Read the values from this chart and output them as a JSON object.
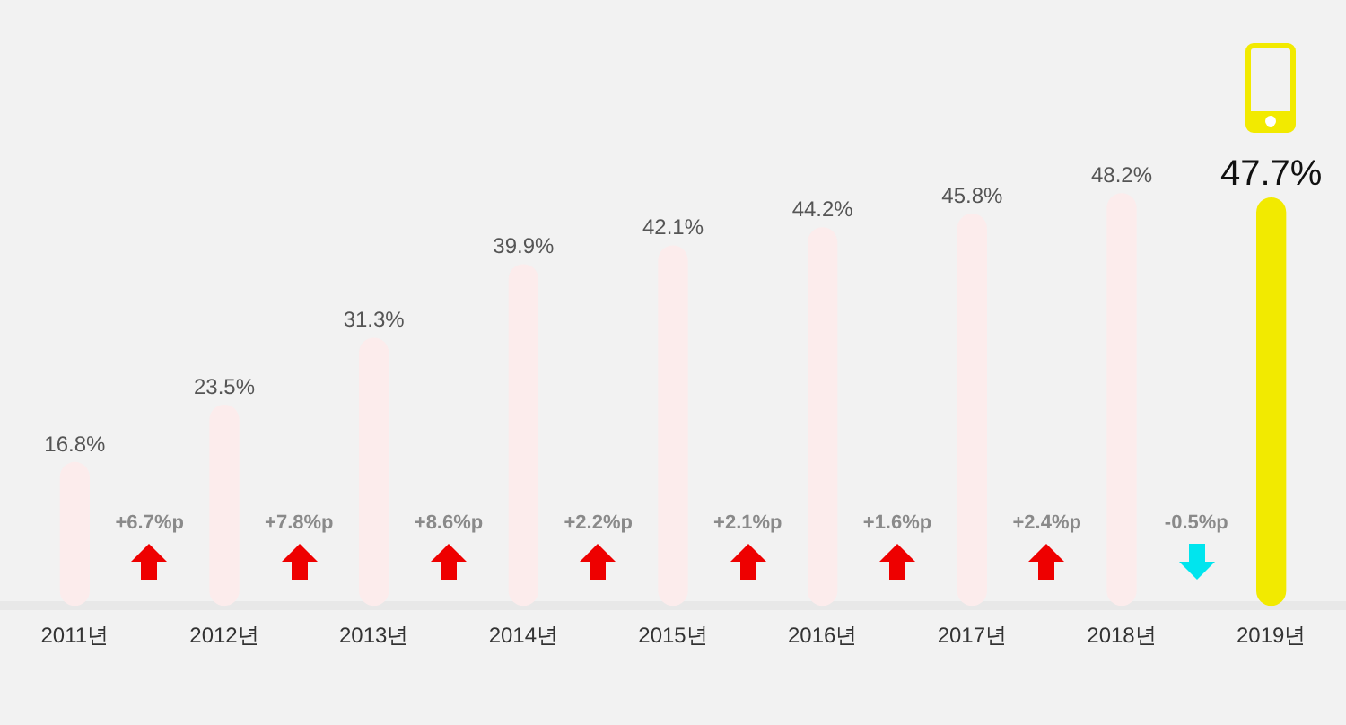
{
  "chart_data": {
    "type": "bar",
    "categories": [
      "2011년",
      "2012년",
      "2013년",
      "2014년",
      "2015년",
      "2016년",
      "2017년",
      "2018년",
      "2019년"
    ],
    "values": [
      16.8,
      23.5,
      31.3,
      39.9,
      42.1,
      44.2,
      45.8,
      48.2,
      47.7
    ],
    "colors": [
      "#fcecec",
      "#fcecec",
      "#fcecec",
      "#fcecec",
      "#fcecec",
      "#fcecec",
      "#fcecec",
      "#fcecec",
      "#f2ea00"
    ],
    "value_labels": [
      "16.8%",
      "23.5%",
      "31.3%",
      "39.9%",
      "42.1%",
      "44.2%",
      "45.8%",
      "48.2%",
      "47.7%"
    ],
    "annotations": [
      "+6.7%p",
      "+7.8%p",
      "+8.6%p",
      "+2.2%p",
      "+2.1%p",
      "+1.6%p",
      "+2.4%p",
      "-0.5%p"
    ]
  }
}
